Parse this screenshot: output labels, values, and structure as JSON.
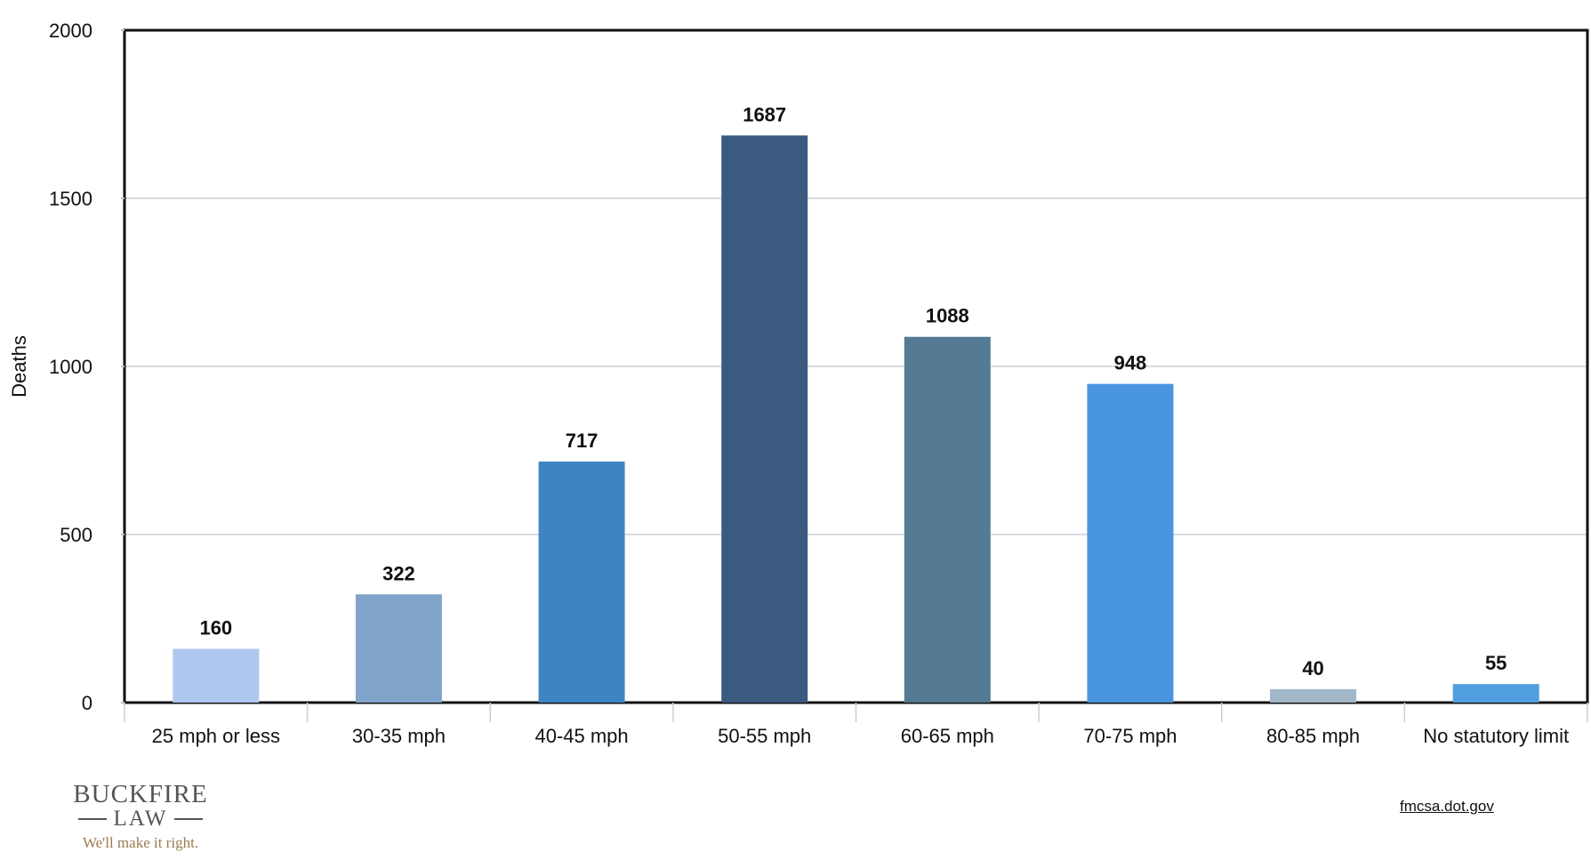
{
  "chart_data": {
    "type": "bar",
    "categories": [
      "25 mph or less",
      "30-35 mph",
      "40-45 mph",
      "50-55 mph",
      "60-65 mph",
      "70-75 mph",
      "80-85 mph",
      "No statutory limit"
    ],
    "values": [
      160,
      322,
      717,
      1687,
      1088,
      948,
      40,
      55
    ],
    "data_labels": [
      "160",
      "322",
      "717",
      "1687",
      "1088",
      "948",
      "40",
      "55"
    ],
    "colors": [
      "#aec8ef",
      "#80a3c9",
      "#3e84c3",
      "#3a5a7f",
      "#557a94",
      "#4995e0",
      "#a2b8c9",
      "#509ddf"
    ],
    "ylabel": "Deaths",
    "ylim": [
      0,
      2000
    ],
    "yticks": [
      "0",
      "500",
      "1000",
      "1500",
      "2000"
    ],
    "grid": true
  },
  "branding": {
    "logo_name": "BUCKFIRE",
    "logo_sub": "LAW",
    "tagline": "We'll make it right.",
    "source": "fmcsa.dot.gov"
  }
}
